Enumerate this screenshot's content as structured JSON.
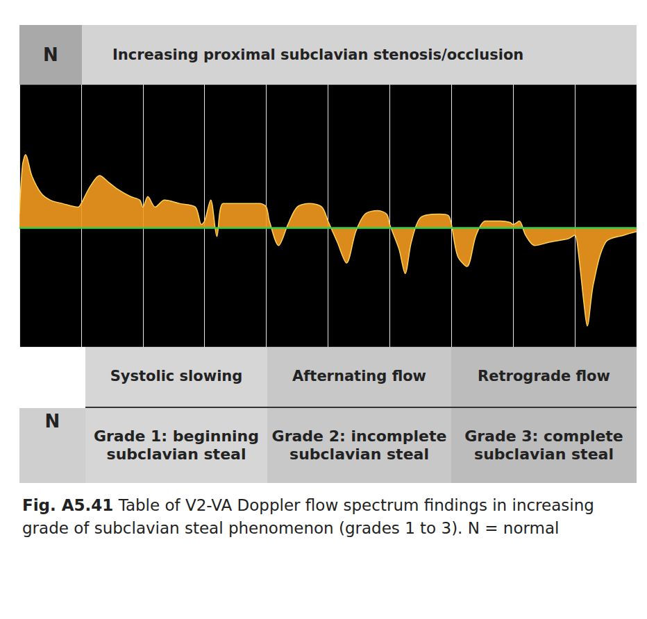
{
  "header": {
    "label": "N",
    "title": "Increasing proximal subclavian stenosis/occlusion"
  },
  "chart_data": {
    "type": "line",
    "x": [
      0.0,
      0.05,
      0.1,
      0.2,
      0.35,
      0.5,
      0.7,
      0.95,
      1.0,
      1.15,
      1.3,
      1.45,
      1.6,
      1.8,
      1.95,
      2.0,
      2.08,
      2.2,
      2.35,
      2.6,
      2.85,
      2.95,
      3.0,
      3.1,
      3.2,
      3.3,
      3.6,
      3.9,
      4.0,
      4.05,
      4.2,
      4.35,
      4.5,
      4.7,
      4.9,
      5.0,
      5.15,
      5.3,
      5.45,
      5.6,
      5.8,
      5.95,
      6.0,
      6.15,
      6.25,
      6.35,
      6.5,
      6.8,
      6.95,
      7.0,
      7.1,
      7.25,
      7.4,
      7.55,
      7.8,
      7.95,
      8.0,
      8.1,
      8.2,
      8.35,
      8.6,
      8.9,
      9.0,
      9.05,
      9.15,
      9.2,
      9.3,
      9.5,
      9.8,
      10.0
    ],
    "values": [
      20,
      90,
      105,
      75,
      50,
      40,
      35,
      30,
      35,
      60,
      75,
      65,
      55,
      45,
      40,
      30,
      45,
      30,
      40,
      35,
      30,
      5,
      10,
      40,
      -12,
      35,
      35,
      35,
      30,
      10,
      -25,
      5,
      30,
      35,
      30,
      10,
      -20,
      -50,
      -5,
      20,
      25,
      20,
      5,
      -30,
      -65,
      -20,
      15,
      20,
      18,
      5,
      -40,
      -55,
      -10,
      10,
      10,
      8,
      5,
      10,
      -10,
      -25,
      -20,
      -15,
      -10,
      -30,
      -110,
      -140,
      -80,
      -20,
      -10,
      -5
    ],
    "baseline": 0,
    "color": "#f39a1e",
    "xlim": [
      0,
      10
    ],
    "xticks": [
      0,
      1,
      2,
      3,
      4,
      5,
      6,
      7,
      8,
      9,
      10
    ],
    "ylim": [
      -170,
      205
    ],
    "grid": true,
    "tick_labels": false
  },
  "table": {
    "rows": [
      [
        "",
        "Systolic slowing",
        "Afternating flow",
        "Retrograde flow"
      ],
      [
        "N",
        "Grade 1: beginning subclavian steal",
        "Grade 2: incomplete subclavian steal",
        "Grade 3: complete subclavian steal"
      ]
    ]
  },
  "caption": {
    "label": "Fig. A5.41",
    "text": "Table of V2-VA Doppler flow spectrum findings in increasing grade of subclavian steal phenomenon (grades 1 to 3). N = normal"
  }
}
